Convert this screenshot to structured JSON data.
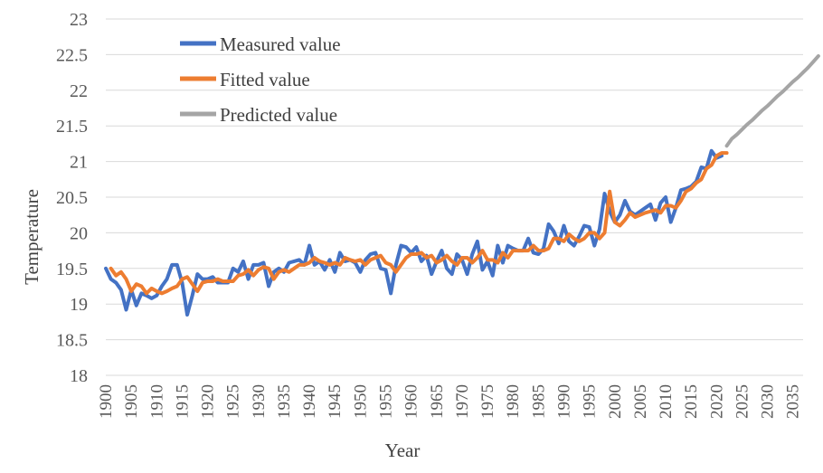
{
  "chart_data": {
    "type": "line",
    "title": "",
    "xlabel": "Year",
    "ylabel": "Temperature",
    "xlim": [
      1900,
      2037
    ],
    "ylim": [
      18,
      23
    ],
    "y_ticks": [
      "18",
      "18.5",
      "19",
      "19.5",
      "20",
      "20.5",
      "21",
      "21.5",
      "22",
      "22.5",
      "23"
    ],
    "x_ticks": [
      "1900",
      "1905",
      "1910",
      "1915",
      "1920",
      "1925",
      "1930",
      "1935",
      "1940",
      "1945",
      "1950",
      "1955",
      "1960",
      "1965",
      "1970",
      "1975",
      "1980",
      "1985",
      "1990",
      "1995",
      "2000",
      "2005",
      "2010",
      "2015",
      "2020",
      "2025",
      "2030",
      "2035"
    ],
    "grid": true,
    "legend_position": "top-left",
    "series": [
      {
        "name": "Measured value",
        "color": "#4472C4",
        "x_start": 1900,
        "values": [
          19.5,
          19.35,
          19.3,
          19.2,
          18.92,
          19.2,
          18.98,
          19.15,
          19.12,
          19.08,
          19.12,
          19.25,
          19.35,
          19.55,
          19.55,
          19.3,
          18.85,
          19.12,
          19.42,
          19.35,
          19.35,
          19.38,
          19.3,
          19.3,
          19.3,
          19.5,
          19.45,
          19.6,
          19.35,
          19.55,
          19.55,
          19.58,
          19.25,
          19.45,
          19.5,
          19.45,
          19.58,
          19.6,
          19.62,
          19.55,
          19.82,
          19.55,
          19.6,
          19.48,
          19.62,
          19.45,
          19.72,
          19.6,
          19.62,
          19.58,
          19.45,
          19.62,
          19.7,
          19.72,
          19.5,
          19.48,
          19.15,
          19.55,
          19.82,
          19.8,
          19.72,
          19.8,
          19.6,
          19.68,
          19.42,
          19.6,
          19.75,
          19.5,
          19.42,
          19.7,
          19.62,
          19.42,
          19.7,
          19.88,
          19.48,
          19.6,
          19.4,
          19.82,
          19.58,
          19.82,
          19.78,
          19.75,
          19.75,
          19.92,
          19.72,
          19.7,
          19.78,
          20.12,
          20.02,
          19.85,
          20.1,
          19.88,
          19.82,
          19.95,
          20.1,
          20.08,
          19.82,
          20.05,
          20.55,
          20.3,
          20.15,
          20.25,
          20.45,
          20.3,
          20.25,
          20.3,
          20.35,
          20.4,
          20.18,
          20.42,
          20.5,
          20.15,
          20.35,
          20.6,
          20.62,
          20.65,
          20.72,
          20.92,
          20.9,
          21.15,
          21.05,
          21.08
        ],
        "x_end": 2021
      },
      {
        "name": "Fitted value",
        "color": "#ED7D31",
        "x_start": 1901,
        "values": [
          19.5,
          19.4,
          19.45,
          19.35,
          19.18,
          19.28,
          19.25,
          19.15,
          19.22,
          19.18,
          19.15,
          19.18,
          19.22,
          19.25,
          19.35,
          19.38,
          19.28,
          19.18,
          19.3,
          19.32,
          19.32,
          19.35,
          19.32,
          19.32,
          19.32,
          19.4,
          19.42,
          19.48,
          19.4,
          19.48,
          19.52,
          19.5,
          19.35,
          19.45,
          19.48,
          19.45,
          19.5,
          19.55,
          19.55,
          19.58,
          19.65,
          19.6,
          19.58,
          19.55,
          19.58,
          19.55,
          19.65,
          19.62,
          19.6,
          19.62,
          19.55,
          19.62,
          19.65,
          19.68,
          19.58,
          19.55,
          19.45,
          19.55,
          19.65,
          19.7,
          19.7,
          19.72,
          19.65,
          19.68,
          19.58,
          19.62,
          19.68,
          19.6,
          19.55,
          19.65,
          19.65,
          19.58,
          19.65,
          19.75,
          19.62,
          19.62,
          19.58,
          19.72,
          19.65,
          19.75,
          19.75,
          19.75,
          19.75,
          19.82,
          19.75,
          19.75,
          19.78,
          19.92,
          19.92,
          19.88,
          19.98,
          19.92,
          19.88,
          19.92,
          20.0,
          20.0,
          19.92,
          20.0,
          20.58,
          20.15,
          20.1,
          20.18,
          20.28,
          20.22,
          20.25,
          20.28,
          20.3,
          20.32,
          20.28,
          20.38,
          20.38,
          20.35,
          20.45,
          20.58,
          20.62,
          20.7,
          20.75,
          20.9,
          20.95,
          21.08,
          21.12,
          21.12
        ],
        "x_end": 2022
      },
      {
        "name": "Predicted value",
        "color": "#A5A5A5",
        "x_start": 2022,
        "values": [
          21.22,
          21.32,
          21.38,
          21.45,
          21.52,
          21.58,
          21.65,
          21.72,
          21.78,
          21.85,
          21.92,
          21.98,
          22.05,
          22.12,
          22.18,
          22.25,
          22.32,
          22.4,
          22.48
        ],
        "x_end": 2040
      }
    ]
  }
}
